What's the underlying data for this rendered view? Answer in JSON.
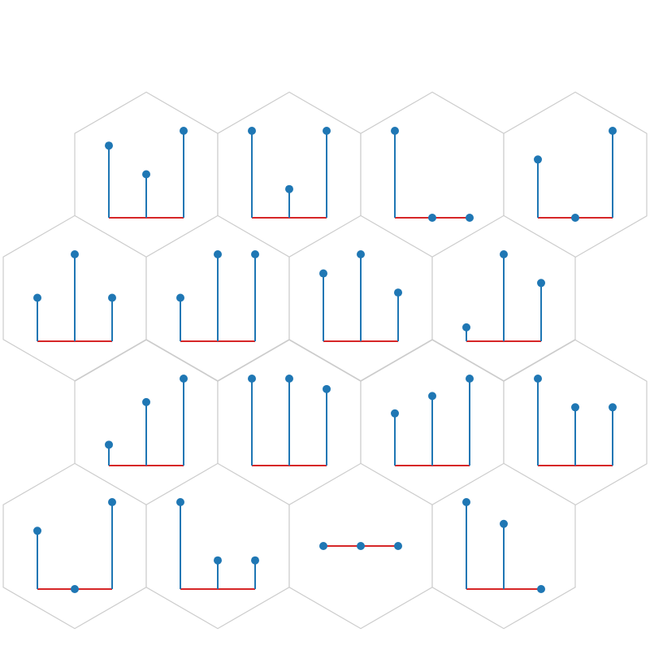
{
  "chart_data": {
    "type": "stem",
    "layout": "hexagonal-grid",
    "rows": 4,
    "stem_color": "#1f77b4",
    "baseline_color": "#d62728",
    "hex_border_color": "#cccccc",
    "ylim": [
      0,
      1
    ],
    "x": [
      0,
      1,
      2
    ],
    "panels": [
      {
        "values": [
          0.83,
          0.5,
          1.0
        ]
      },
      {
        "values": [
          1.0,
          0.33,
          1.0
        ]
      },
      {
        "values": [
          1.0,
          0.0,
          0.0
        ]
      },
      {
        "values": [
          0.67,
          0.0,
          1.0
        ]
      },
      {
        "values": [
          0.5,
          1.0,
          0.5
        ]
      },
      {
        "values": [
          0.5,
          1.0,
          1.0
        ]
      },
      {
        "values": [
          0.78,
          1.0,
          0.56
        ]
      },
      {
        "values": [
          0.16,
          1.0,
          0.67
        ]
      },
      {
        "values": [
          0.24,
          0.73,
          1.0
        ]
      },
      {
        "values": [
          1.0,
          1.0,
          0.88
        ]
      },
      {
        "values": [
          0.6,
          0.8,
          1.0
        ]
      },
      {
        "values": [
          1.0,
          0.67,
          0.67
        ]
      },
      {
        "values": [
          0.67,
          0.0,
          1.0
        ]
      },
      {
        "values": [
          1.0,
          0.33,
          0.33
        ]
      },
      {
        "values": [
          0.5,
          0.5,
          0.5
        ],
        "flat": true
      },
      {
        "values": [
          1.0,
          0.75,
          0.0
        ]
      }
    ]
  }
}
